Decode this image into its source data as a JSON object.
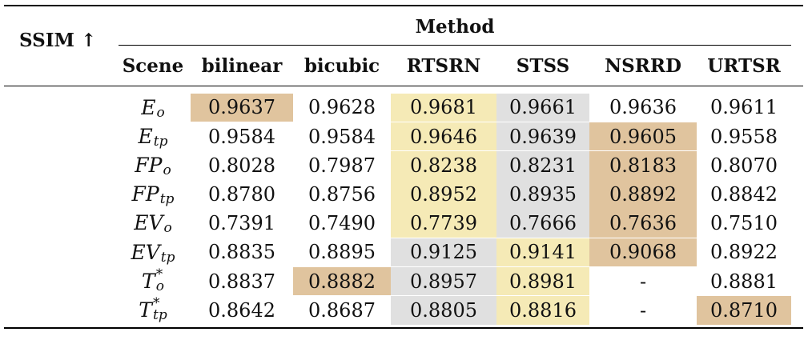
{
  "corner_label": "SSIM ↑",
  "group_header": "Method",
  "columns": [
    "Scene",
    "bilinear",
    "bicubic",
    "RTSRN",
    "STSS",
    "NSRRD",
    "URTSR"
  ],
  "rows": [
    {
      "scene": {
        "base": "E",
        "sub": "o",
        "sup": ""
      },
      "values": [
        "0.9637",
        "0.9628",
        "0.9681",
        "0.9661",
        "0.9636",
        "0.9611"
      ]
    },
    {
      "scene": {
        "base": "E",
        "sub": "tp",
        "sup": ""
      },
      "values": [
        "0.9584",
        "0.9584",
        "0.9646",
        "0.9639",
        "0.9605",
        "0.9558"
      ]
    },
    {
      "scene": {
        "base": "FP",
        "sub": "o",
        "sup": ""
      },
      "values": [
        "0.8028",
        "0.7987",
        "0.8238",
        "0.8231",
        "0.8183",
        "0.8070"
      ]
    },
    {
      "scene": {
        "base": "FP",
        "sub": "tp",
        "sup": ""
      },
      "values": [
        "0.8780",
        "0.8756",
        "0.8952",
        "0.8935",
        "0.8892",
        "0.8842"
      ]
    },
    {
      "scene": {
        "base": "EV",
        "sub": "o",
        "sup": ""
      },
      "values": [
        "0.7391",
        "0.7490",
        "0.7739",
        "0.7666",
        "0.7636",
        "0.7510"
      ]
    },
    {
      "scene": {
        "base": "EV",
        "sub": "tp",
        "sup": ""
      },
      "values": [
        "0.8835",
        "0.8895",
        "0.9125",
        "0.9141",
        "0.9068",
        "0.8922"
      ]
    },
    {
      "scene": {
        "base": "T",
        "sub": "o",
        "sup": "*"
      },
      "values": [
        "0.8837",
        "0.8882",
        "0.8957",
        "0.8981",
        "-",
        "0.8881"
      ]
    },
    {
      "scene": {
        "base": "T",
        "sub": "tp",
        "sup": "*"
      },
      "values": [
        "0.8642",
        "0.8687",
        "0.8805",
        "0.8816",
        "-",
        "0.8710"
      ]
    }
  ],
  "highlights": [
    [
      "orange",
      "",
      "yellow",
      "gray",
      "",
      ""
    ],
    [
      "",
      "",
      "yellow",
      "gray",
      "orange",
      ""
    ],
    [
      "",
      "",
      "yellow",
      "gray",
      "orange",
      ""
    ],
    [
      "",
      "",
      "yellow",
      "gray",
      "orange",
      ""
    ],
    [
      "",
      "",
      "yellow",
      "gray",
      "orange",
      ""
    ],
    [
      "",
      "",
      "gray",
      "yellow",
      "orange",
      ""
    ],
    [
      "",
      "orange",
      "gray",
      "yellow",
      "",
      ""
    ],
    [
      "",
      "",
      "gray",
      "yellow",
      "",
      "orange"
    ]
  ],
  "highlight_colors": {
    "orange": "#e0c49e",
    "yellow": "#f5eab6",
    "gray": "#e0e0e0"
  }
}
